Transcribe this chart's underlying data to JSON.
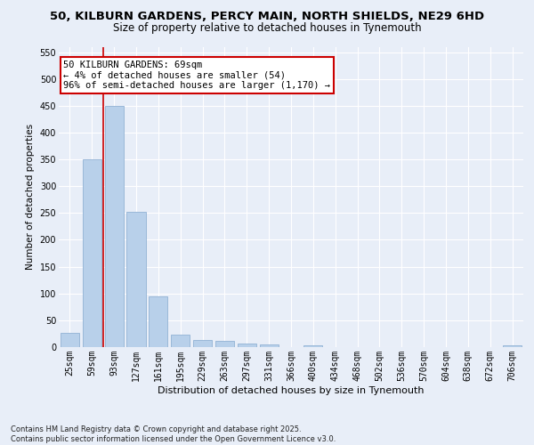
{
  "title": "50, KILBURN GARDENS, PERCY MAIN, NORTH SHIELDS, NE29 6HD",
  "subtitle": "Size of property relative to detached houses in Tynemouth",
  "xlabel": "Distribution of detached houses by size in Tynemouth",
  "ylabel": "Number of detached properties",
  "categories": [
    "25sqm",
    "59sqm",
    "93sqm",
    "127sqm",
    "161sqm",
    "195sqm",
    "229sqm",
    "263sqm",
    "297sqm",
    "331sqm",
    "366sqm",
    "400sqm",
    "434sqm",
    "468sqm",
    "502sqm",
    "536sqm",
    "570sqm",
    "604sqm",
    "638sqm",
    "672sqm",
    "706sqm"
  ],
  "values": [
    27,
    350,
    450,
    253,
    95,
    24,
    13,
    11,
    6,
    5,
    0,
    4,
    0,
    0,
    0,
    0,
    0,
    0,
    0,
    0,
    4
  ],
  "bar_color": "#b8d0ea",
  "bar_edgecolor": "#9ab8d8",
  "vline_color": "#cc0000",
  "vline_x_index": 1.5,
  "ylim": [
    0,
    560
  ],
  "yticks": [
    0,
    50,
    100,
    150,
    200,
    250,
    300,
    350,
    400,
    450,
    500,
    550
  ],
  "annotation_text": "50 KILBURN GARDENS: 69sqm\n← 4% of detached houses are smaller (54)\n96% of semi-detached houses are larger (1,170) →",
  "annotation_box_color": "white",
  "annotation_box_edgecolor": "#cc0000",
  "footer": "Contains HM Land Registry data © Crown copyright and database right 2025.\nContains public sector information licensed under the Open Government Licence v3.0.",
  "bg_color": "#e8eef8",
  "grid_color": "white",
  "title_fontsize": 9.5,
  "subtitle_fontsize": 8.5,
  "xlabel_fontsize": 8,
  "ylabel_fontsize": 7.5,
  "tick_fontsize": 7,
  "annot_fontsize": 7.5,
  "footer_fontsize": 6
}
